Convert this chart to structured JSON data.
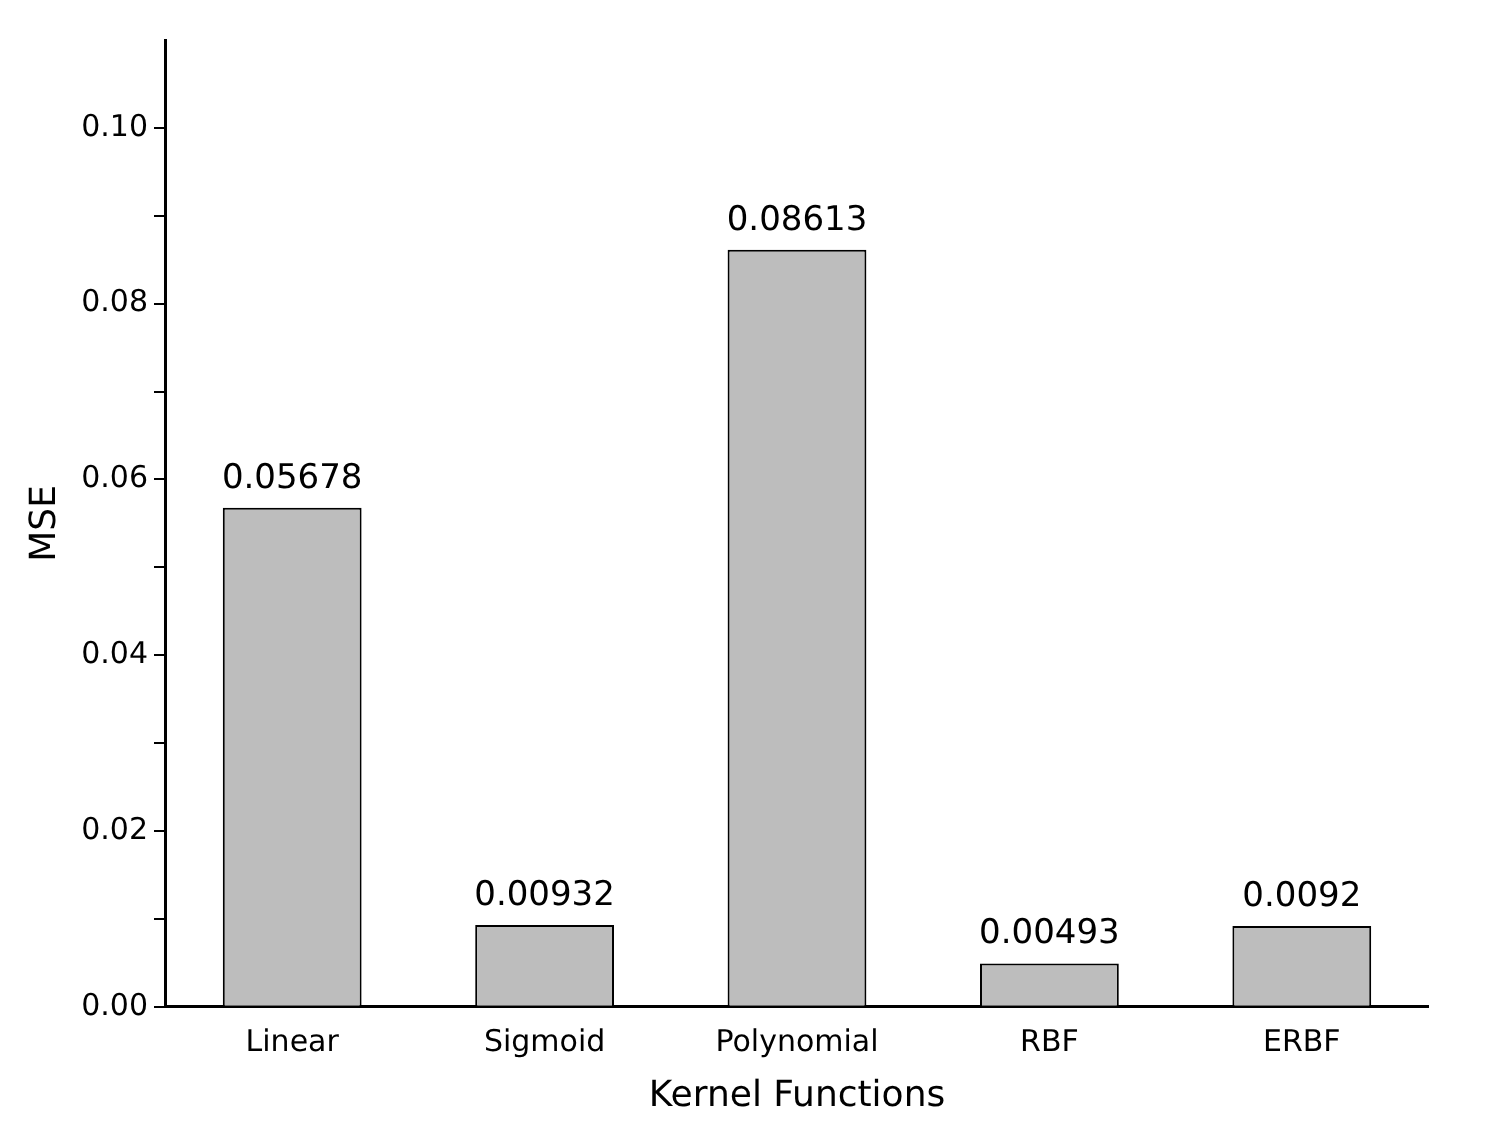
{
  "chart_data": {
    "type": "bar",
    "xlabel": "Kernel Functions",
    "ylabel": "MSE",
    "categories": [
      "Linear",
      "Sigmoid",
      "Polynomial",
      "RBF",
      "ERBF"
    ],
    "values": [
      0.05678,
      0.00932,
      0.08613,
      0.00493,
      0.0092
    ],
    "color": "#bdbdbd",
    "ylim": [
      0,
      0.11
    ],
    "yticks": [
      {
        "value": 0,
        "label": "0.00"
      },
      {
        "value": 0.01,
        "label": null
      },
      {
        "value": 0.02,
        "label": "0.02"
      },
      {
        "value": 0.03,
        "label": null
      },
      {
        "value": 0.04,
        "label": "0.04"
      },
      {
        "value": 0.05,
        "label": null
      },
      {
        "value": 0.06,
        "label": "0.06"
      },
      {
        "value": 0.07,
        "label": null
      },
      {
        "value": 0.08,
        "label": "0.08"
      },
      {
        "value": 0.09,
        "label": null
      },
      {
        "value": 0.1,
        "label": "0.10"
      }
    ],
    "data_labels": true,
    "grid": false,
    "legend": false
  }
}
